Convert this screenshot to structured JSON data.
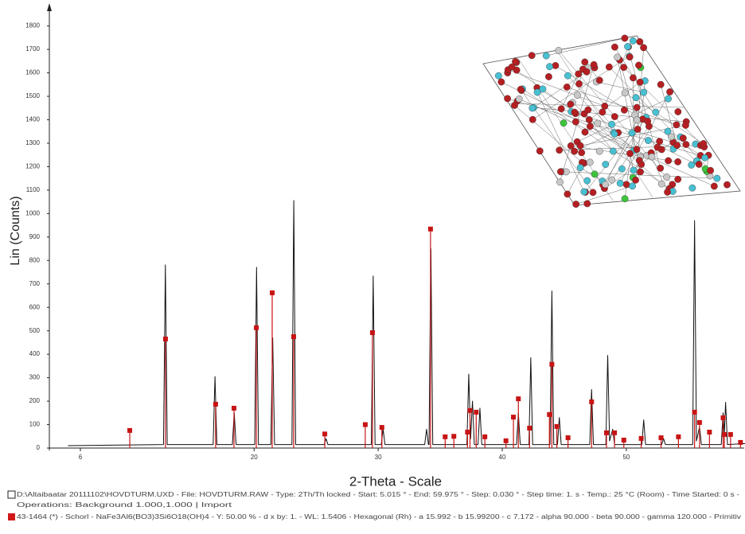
{
  "chart_data": {
    "type": "line",
    "y_label": "Lin (Counts)",
    "x_label": "2-Theta - Scale",
    "xlim": [
      3.5,
      59.5
    ],
    "ylim": [
      0,
      1870
    ],
    "xticks": [
      6,
      20,
      30,
      40,
      50
    ],
    "yticks": [
      0,
      100,
      200,
      300,
      400,
      500,
      600,
      700,
      800,
      900,
      1000,
      1100,
      1200,
      1300,
      1400,
      1500,
      1600,
      1700,
      1800
    ],
    "series": [
      {
        "style": "line",
        "color": "#111111",
        "x": [
          5.0,
          12.7,
          12.85,
          13.0,
          16.7,
          16.85,
          17.0,
          18.25,
          18.4,
          18.55,
          20.05,
          20.2,
          20.35,
          21.35,
          21.5,
          21.65,
          23.05,
          23.2,
          23.35,
          25.65,
          25.8,
          25.95,
          29.45,
          29.6,
          29.75,
          30.25,
          30.4,
          30.55,
          33.75,
          33.9,
          34.05,
          34.1,
          34.25,
          34.4,
          37.15,
          37.3,
          37.45,
          37.6,
          37.75,
          38.05,
          38.2,
          38.35,
          41.15,
          41.3,
          41.45,
          42.15,
          42.3,
          42.45,
          43.85,
          44.0,
          44.15,
          44.45,
          44.6,
          44.75,
          47.05,
          47.2,
          47.35,
          48.35,
          48.5,
          48.65,
          48.9,
          49.05,
          51.25,
          51.4,
          51.55,
          52.85,
          53.0,
          53.15,
          55.35,
          55.5,
          55.65,
          55.9,
          56.05,
          57.65,
          57.8,
          57.9,
          58.0,
          58.15,
          59.9
        ],
        "values": [
          10,
          15,
          781,
          15,
          15,
          305,
          15,
          15,
          150,
          15,
          15,
          771,
          15,
          15,
          470,
          15,
          15,
          1056,
          15,
          15,
          40,
          15,
          15,
          734,
          15,
          15,
          80,
          15,
          15,
          80,
          15,
          15,
          850,
          15,
          15,
          315,
          40,
          200,
          15,
          15,
          170,
          15,
          15,
          150,
          15,
          15,
          385,
          15,
          15,
          670,
          15,
          15,
          130,
          15,
          15,
          250,
          15,
          15,
          395,
          30,
          80,
          15,
          15,
          120,
          15,
          15,
          40,
          15,
          15,
          970,
          30,
          90,
          15,
          15,
          150,
          60,
          195,
          15,
          20
        ]
      },
      {
        "style": "stick",
        "color": "#c81414",
        "x": [
          9.98,
          12.86,
          16.9,
          18.38,
          20.18,
          21.46,
          23.19,
          25.7,
          28.96,
          29.54,
          30.3,
          34.22,
          35.4,
          36.1,
          37.2,
          37.4,
          37.9,
          38.6,
          40.3,
          40.9,
          41.3,
          42.2,
          43.8,
          44.0,
          44.4,
          45.3,
          47.2,
          48.4,
          49.05,
          49.8,
          51.2,
          52.8,
          54.2,
          55.5,
          55.9,
          56.7,
          57.8,
          57.9,
          58.4,
          59.2
        ],
        "values": [
          75,
          465,
          187,
          170,
          513,
          662,
          475,
          60,
          100,
          492,
          88,
          934,
          48,
          50,
          68,
          160,
          153,
          48,
          31,
          132,
          210,
          85,
          143,
          357,
          92,
          44,
          197,
          65,
          65,
          34,
          41,
          44,
          48,
          153,
          109,
          68,
          129,
          58,
          58,
          24
        ]
      }
    ],
    "footer": [
      "D:\\Altaibaatar 20111102\\HOVDTURM.UXD - File: HOVDTURM.RAW - Type: 2Th/Th locked - Start: 5.015 ° - End: 59.975 ° - Step: 0.030 ° - Step time: 1. s - Temp.: 25 °C (Room) - Time Started: 0 s -",
      "Operations: Background 1.000,1.000 | Import",
      "43-1464 (*) - Schorl - NaFe3Al6(BO3)3Si6O18(OH)4 - Y: 50.00 % - d x by: 1. - WL: 1.5406 - Hexagonal (Rh) - a 15.992 - b 15.99200 - c 7.172 - alpha 90.000 - beta 90.000 - gamma 120.000 - Primitiv"
    ]
  }
}
